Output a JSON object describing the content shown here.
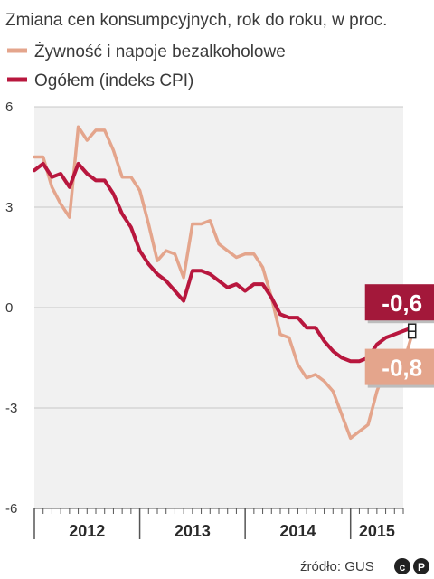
{
  "chart_data": {
    "type": "line",
    "title": "Zmiana cen konsumpcyjnych, rok do roku, w proc.",
    "y_ticks": [
      "6",
      "3",
      "0",
      "-3",
      "-6"
    ],
    "y_tick_values": [
      6,
      3,
      0,
      -3,
      -6
    ],
    "ylim": [
      -6,
      6
    ],
    "x_range": [
      2012.0,
      2015.5
    ],
    "years": [
      "2012",
      "2013",
      "2014",
      "2015"
    ],
    "grid": true,
    "legend_placement": "top-left",
    "series": [
      {
        "name": "Żywność i napoje bezalkoholowe",
        "color": "#e4a58c",
        "values": [
          4.5,
          4.5,
          3.6,
          3.1,
          2.7,
          5.4,
          5.0,
          5.3,
          5.3,
          4.7,
          3.9,
          3.9,
          3.5,
          2.5,
          1.4,
          1.7,
          1.6,
          0.9,
          2.5,
          2.5,
          2.6,
          1.9,
          1.7,
          1.5,
          1.6,
          1.6,
          1.2,
          0.3,
          -0.8,
          -0.9,
          -1.7,
          -2.1,
          -2.0,
          -2.2,
          -2.5,
          -3.2,
          -3.9,
          -3.7,
          -3.5,
          -2.5,
          -1.8,
          -1.8,
          -1.7,
          -0.8
        ]
      },
      {
        "name": "Ogółem (indeks CPI)",
        "color": "#b8173e",
        "values": [
          4.1,
          4.3,
          3.9,
          4.0,
          3.6,
          4.3,
          4.0,
          3.8,
          3.8,
          3.4,
          2.8,
          2.4,
          1.7,
          1.3,
          1.0,
          0.8,
          0.5,
          0.2,
          1.1,
          1.1,
          1.0,
          0.8,
          0.6,
          0.7,
          0.5,
          0.7,
          0.7,
          0.3,
          -0.2,
          -0.3,
          -0.3,
          -0.6,
          -0.6,
          -1.0,
          -1.3,
          -1.5,
          -1.6,
          -1.6,
          -1.5,
          -1.1,
          -0.9,
          -0.8,
          -0.7,
          -0.6
        ]
      }
    ],
    "callouts": [
      {
        "series": 1,
        "label": "-0,6",
        "bg": "#a3183a"
      },
      {
        "series": 0,
        "label": "-0,8",
        "bg": "#e4a58c"
      }
    ]
  },
  "source": "źródło: GUS",
  "logo_text": "cP"
}
